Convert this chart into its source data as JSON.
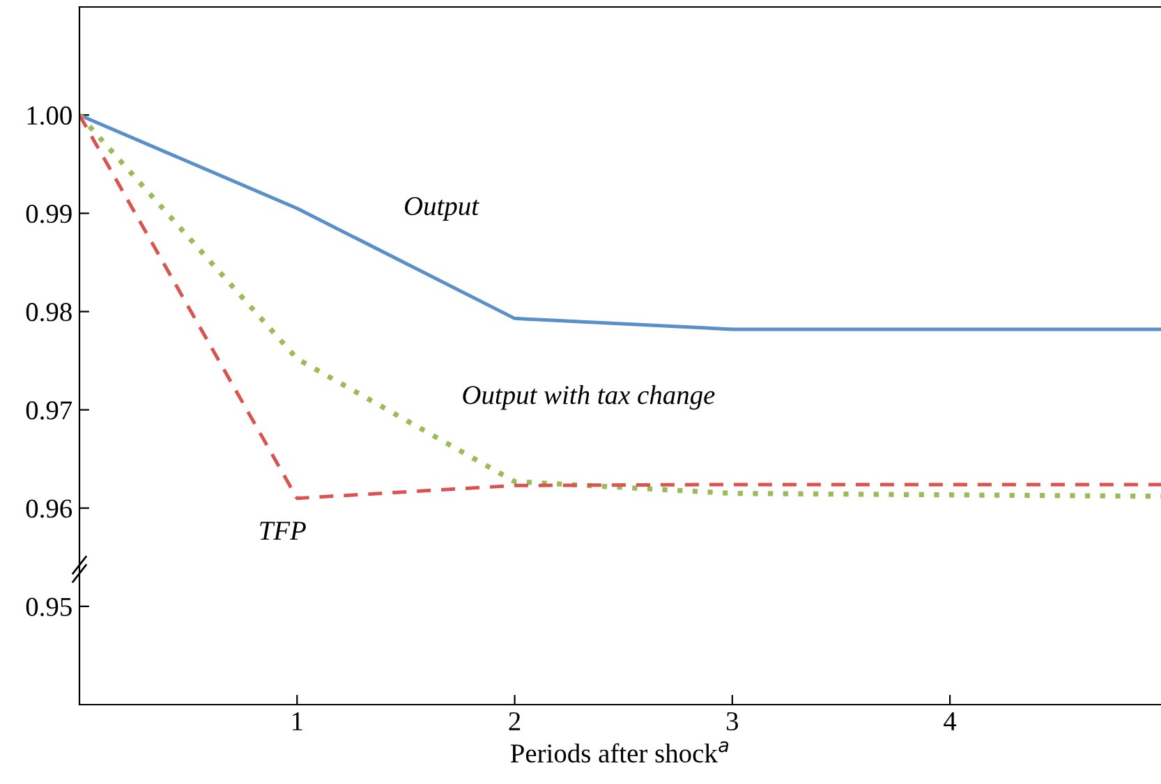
{
  "chart_data": {
    "type": "line",
    "xlabel": "Periods after shock$^{a}$",
    "xlim": [
      0,
      4.97
    ],
    "xticks": [
      1,
      2,
      3,
      4
    ],
    "ylim": [
      0.94,
      1.011
    ],
    "yticks": [
      {
        "value": 0.95,
        "label": "0.95"
      },
      {
        "value": 0.96,
        "label": "0.96"
      },
      {
        "value": 0.97,
        "label": "0.97"
      },
      {
        "value": 0.98,
        "label": "0.98"
      },
      {
        "value": 0.99,
        "label": "0.99"
      },
      {
        "value": 1.0,
        "label": "1.00"
      }
    ],
    "grid": false,
    "legend": false,
    "marker": "none",
    "series": [
      {
        "name": "Output",
        "color": "#5b8fc9",
        "line_style": "solid",
        "x": [
          0,
          1,
          2,
          3,
          4.97
        ],
        "values": [
          1.0,
          0.9905,
          0.9793,
          0.9782,
          0.9782
        ]
      },
      {
        "name": "Output with tax change",
        "color": "#9bbb59",
        "line_style": "dotted",
        "x": [
          0,
          1,
          2,
          3,
          4.97
        ],
        "values": [
          1.0,
          0.9752,
          0.9627,
          0.9615,
          0.9612
        ]
      },
      {
        "name": "TFP",
        "color": "#d9534f",
        "line_style": "dashed",
        "x": [
          0,
          1,
          2,
          3,
          4.97
        ],
        "values": [
          1.0,
          0.961,
          0.9623,
          0.9624,
          0.9624
        ]
      }
    ]
  }
}
